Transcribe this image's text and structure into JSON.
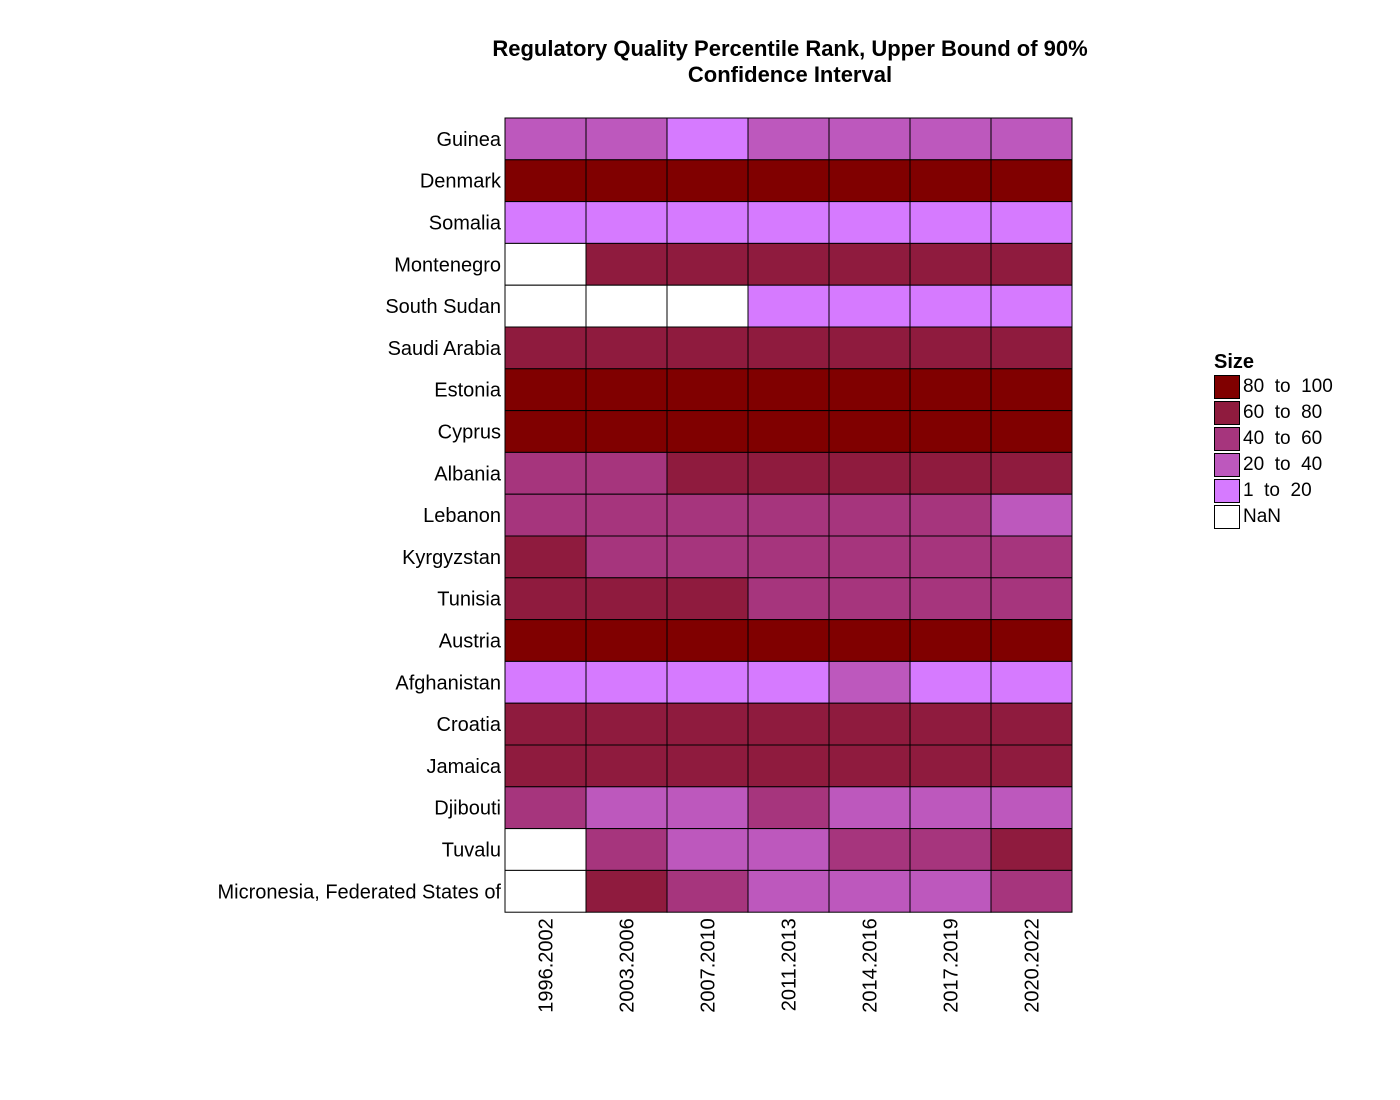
{
  "chart_data": {
    "type": "heatmap",
    "title_lines": [
      "Regulatory Quality Percentile Rank, Upper Bound of 90%",
      "Confidence Interval"
    ],
    "x_categories": [
      "1996.2002",
      "2003.2006",
      "2007.2010",
      "2011.2013",
      "2014.2016",
      "2017.2019",
      "2020.2022"
    ],
    "y_categories": [
      "Guinea",
      "Denmark",
      "Somalia",
      "Montenegro",
      "South Sudan",
      "Saudi Arabia",
      "Estonia",
      "Cyprus",
      "Albania",
      "Lebanon",
      "Kyrgyzstan",
      "Tunisia",
      "Austria",
      "Afghanistan",
      "Croatia",
      "Jamaica",
      "Djibouti",
      "Tuvalu",
      "Micronesia, Federated States of"
    ],
    "cells": [
      [
        "20 to 40",
        "20 to 40",
        "1 to 20",
        "20 to 40",
        "20 to 40",
        "20 to 40",
        "20 to 40"
      ],
      [
        "80 to 100",
        "80 to 100",
        "80 to 100",
        "80 to 100",
        "80 to 100",
        "80 to 100",
        "80 to 100"
      ],
      [
        "1 to 20",
        "1 to 20",
        "1 to 20",
        "1 to 20",
        "1 to 20",
        "1 to 20",
        "1 to 20"
      ],
      [
        "NaN",
        "60 to 80",
        "60 to 80",
        "60 to 80",
        "60 to 80",
        "60 to 80",
        "60 to 80"
      ],
      [
        "NaN",
        "NaN",
        "NaN",
        "1 to 20",
        "1 to 20",
        "1 to 20",
        "1 to 20"
      ],
      [
        "60 to 80",
        "60 to 80",
        "60 to 80",
        "60 to 80",
        "60 to 80",
        "60 to 80",
        "60 to 80"
      ],
      [
        "80 to 100",
        "80 to 100",
        "80 to 100",
        "80 to 100",
        "80 to 100",
        "80 to 100",
        "80 to 100"
      ],
      [
        "80 to 100",
        "80 to 100",
        "80 to 100",
        "80 to 100",
        "80 to 100",
        "80 to 100",
        "80 to 100"
      ],
      [
        "40 to 60",
        "40 to 60",
        "60 to 80",
        "60 to 80",
        "60 to 80",
        "60 to 80",
        "60 to 80"
      ],
      [
        "40 to 60",
        "40 to 60",
        "40 to 60",
        "40 to 60",
        "40 to 60",
        "40 to 60",
        "20 to 40"
      ],
      [
        "60 to 80",
        "40 to 60",
        "40 to 60",
        "40 to 60",
        "40 to 60",
        "40 to 60",
        "40 to 60"
      ],
      [
        "60 to 80",
        "60 to 80",
        "60 to 80",
        "40 to 60",
        "40 to 60",
        "40 to 60",
        "40 to 60"
      ],
      [
        "80 to 100",
        "80 to 100",
        "80 to 100",
        "80 to 100",
        "80 to 100",
        "80 to 100",
        "80 to 100"
      ],
      [
        "1 to 20",
        "1 to 20",
        "1 to 20",
        "1 to 20",
        "20 to 40",
        "1 to 20",
        "1 to 20"
      ],
      [
        "60 to 80",
        "60 to 80",
        "60 to 80",
        "60 to 80",
        "60 to 80",
        "60 to 80",
        "60 to 80"
      ],
      [
        "60 to 80",
        "60 to 80",
        "60 to 80",
        "60 to 80",
        "60 to 80",
        "60 to 80",
        "60 to 80"
      ],
      [
        "40 to 60",
        "20 to 40",
        "20 to 40",
        "40 to 60",
        "20 to 40",
        "20 to 40",
        "20 to 40"
      ],
      [
        "NaN",
        "40 to 60",
        "20 to 40",
        "20 to 40",
        "40 to 60",
        "40 to 60",
        "60 to 80"
      ],
      [
        "NaN",
        "60 to 80",
        "40 to 60",
        "20 to 40",
        "20 to 40",
        "20 to 40",
        "40 to 60"
      ]
    ],
    "legend": {
      "title": "Size",
      "position": "right",
      "items": [
        {
          "label": "80  to  100",
          "bin": "80 to 100",
          "color": "#800000"
        },
        {
          "label": "60  to  80",
          "bin": "60 to 80",
          "color": "#8f1b3e"
        },
        {
          "label": "40  to  60",
          "bin": "40 to 60",
          "color": "#a6357d"
        },
        {
          "label": "20  to  40",
          "bin": "20 to 40",
          "color": "#bd58bd"
        },
        {
          "label": "1  to  20",
          "bin": "1 to 20",
          "color": "#d67aff"
        },
        {
          "label": "NaN",
          "bin": "NaN",
          "color": "#ffffff"
        }
      ]
    },
    "grid": false
  }
}
